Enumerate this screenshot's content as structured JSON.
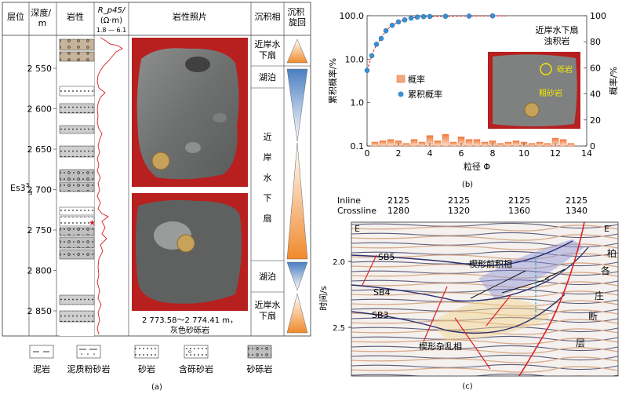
{
  "panel_a": {
    "headers": {
      "layer": "层位",
      "depth": "深度/\nm",
      "lithology": "岩性",
      "resistivity": "R_p45/\n(Ω·m)",
      "res_range": "1.8 — 6.1",
      "photo": "岩性照片",
      "facies": "沉积相",
      "cycle": "沉积\n旋回"
    },
    "layer_label": "Es3",
    "layer_sup": "3",
    "depths": [
      "2 550",
      "2 600",
      "2 650",
      "2 700",
      "2 750",
      "2 800",
      "2 850"
    ],
    "facies": [
      {
        "label": "近岸水\n下扇"
      },
      {
        "label": "湖泊"
      },
      {
        "label": "近\n岸\n水\n下\n扇"
      },
      {
        "label": "湖泊"
      },
      {
        "label": "近岸水\n下扇"
      }
    ],
    "photo_caption_1": "2 773.58～2 774.41 m，",
    "photo_caption_2": "灰色砂砾岩",
    "legend": [
      "泥岩",
      "泥质粉砂岩",
      "砂岩",
      "含砾砂岩",
      "砂砾岩"
    ],
    "label": "(a)"
  },
  "panel_b": {
    "chart_data": {
      "type": "bar",
      "xlabel": "粒径 Φ",
      "ylabel_left": "累积概率/%",
      "ylabel_right": "概率/%",
      "x_ticks": [
        0,
        2,
        4,
        6,
        8,
        10,
        12,
        14
      ],
      "y_left_ticks": [
        "0.1",
        "1.0",
        "10.0",
        "100.0"
      ],
      "y_right_ticks": [
        0,
        20,
        40,
        60,
        80,
        100
      ],
      "xlim": [
        0,
        14
      ],
      "ylim_left": [
        0.1,
        100
      ],
      "ylim_right": [
        0,
        100
      ],
      "left_log_scale": true,
      "legend": [
        "概率",
        "累积概率"
      ],
      "bar_x": [
        0.5,
        1.0,
        1.5,
        2.0,
        2.5,
        3.0,
        3.5,
        4.0,
        4.5,
        5.0,
        5.5,
        6.0,
        6.5,
        7.0,
        7.5,
        8.0,
        8.5,
        9.0,
        9.5,
        10.0,
        10.5,
        11.0,
        11.5,
        12.0,
        12.5,
        13.0
      ],
      "bar_values": [
        3,
        4,
        5,
        4,
        2,
        5,
        3,
        8,
        4,
        9,
        3,
        7,
        5,
        5,
        3,
        4,
        2,
        3,
        4,
        3,
        2,
        3,
        2,
        6,
        5,
        2
      ],
      "cum_x": [
        0,
        0.3,
        0.6,
        0.9,
        1.2,
        1.6,
        2.0,
        2.4,
        2.8,
        3.2,
        3.6,
        4.0,
        5.0,
        6.5,
        8.0
      ],
      "cum_values": [
        5.5,
        12,
        22,
        30,
        45,
        60,
        72,
        80,
        88,
        93,
        95,
        96,
        97,
        98,
        99
      ],
      "cum_extension_x": [
        8.0,
        9.0
      ],
      "cum_extension_values": [
        99,
        99
      ],
      "inset_title_1": "近岸水下扇",
      "inset_title_2": "浊积岩",
      "inset_labels": [
        "砾岩",
        "粗砂岩"
      ]
    },
    "label": "(b)"
  },
  "panel_c": {
    "inline_label": "Inline",
    "crossline_label": "Crossline",
    "inline_values": [
      "2125",
      "2125",
      "2125",
      "2125"
    ],
    "crossline_values": [
      "1280",
      "1320",
      "1360",
      "1340"
    ],
    "corner_left": "E",
    "corner_right": "E′",
    "y_label": "时间/s",
    "y_ticks": [
      "2.0",
      "2.5"
    ],
    "horizons": [
      "SB5",
      "SB4",
      "SB3"
    ],
    "annotations": [
      "楔形前积相",
      "楔形杂乱相"
    ],
    "fault_label": [
      "柏",
      "各",
      "庄",
      "断",
      "层"
    ],
    "label": "(c)"
  }
}
